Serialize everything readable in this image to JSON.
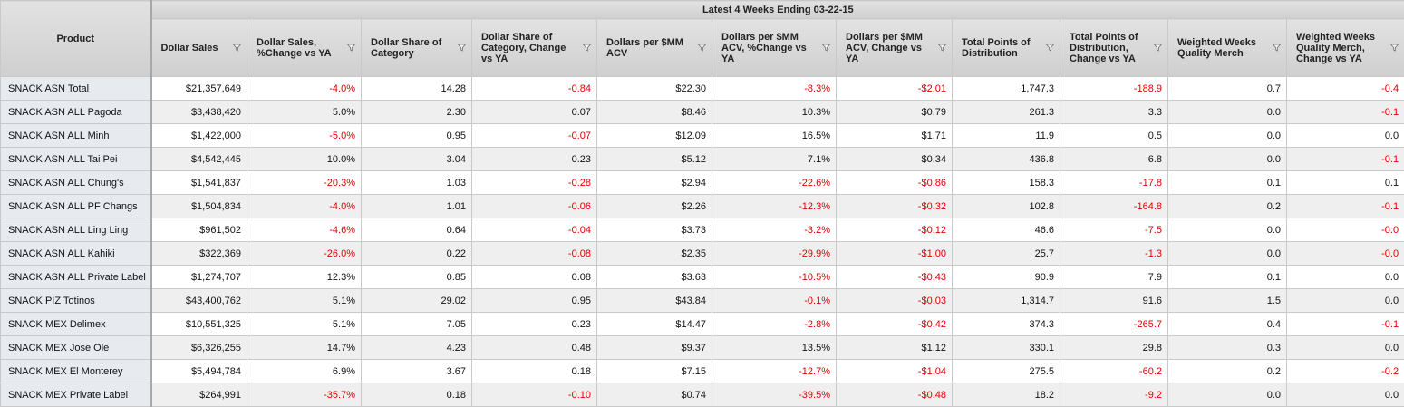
{
  "header": {
    "group": "Latest 4 Weeks Ending 03-22-15",
    "product": "Product",
    "columns": [
      "Dollar Sales",
      "Dollar Sales, %Change vs YA",
      "Dollar Share of Category",
      "Dollar Share of Category, Change vs YA",
      "Dollars per $MM ACV",
      "Dollars per $MM ACV, %Change vs YA",
      "Dollars per $MM ACV, Change vs YA",
      "Total Points of Distribution",
      "Total Points of Distribution, Change vs YA",
      "Weighted Weeks Quality Merch",
      "Weighted Weeks Quality Merch, Change vs YA"
    ]
  },
  "table": {
    "rows": [
      [
        "SNACK ASN Total",
        "$21,357,649",
        "-4.0%",
        "14.28",
        "-0.84",
        "$22.30",
        "-8.3%",
        "-$2.01",
        "1,747.3",
        "-188.9",
        "0.7",
        "-0.4"
      ],
      [
        "SNACK ASN ALL Pagoda",
        "$3,438,420",
        "5.0%",
        "2.30",
        "0.07",
        "$8.46",
        "10.3%",
        "$0.79",
        "261.3",
        "3.3",
        "0.0",
        "-0.1"
      ],
      [
        "SNACK ASN ALL Minh",
        "$1,422,000",
        "-5.0%",
        "0.95",
        "-0.07",
        "$12.09",
        "16.5%",
        "$1.71",
        "11.9",
        "0.5",
        "0.0",
        "0.0"
      ],
      [
        "SNACK ASN ALL Tai Pei",
        "$4,542,445",
        "10.0%",
        "3.04",
        "0.23",
        "$5.12",
        "7.1%",
        "$0.34",
        "436.8",
        "6.8",
        "0.0",
        "-0.1"
      ],
      [
        "SNACK ASN ALL Chung's",
        "$1,541,837",
        "-20.3%",
        "1.03",
        "-0.28",
        "$2.94",
        "-22.6%",
        "-$0.86",
        "158.3",
        "-17.8",
        "0.1",
        "0.1"
      ],
      [
        "SNACK ASN ALL PF Changs",
        "$1,504,834",
        "-4.0%",
        "1.01",
        "-0.06",
        "$2.26",
        "-12.3%",
        "-$0.32",
        "102.8",
        "-164.8",
        "0.2",
        "-0.1"
      ],
      [
        "SNACK ASN ALL Ling Ling",
        "$961,502",
        "-4.6%",
        "0.64",
        "-0.04",
        "$3.73",
        "-3.2%",
        "-$0.12",
        "46.6",
        "-7.5",
        "0.0",
        "-0.0"
      ],
      [
        "SNACK ASN ALL Kahiki",
        "$322,369",
        "-26.0%",
        "0.22",
        "-0.08",
        "$2.35",
        "-29.9%",
        "-$1.00",
        "25.7",
        "-1.3",
        "0.0",
        "-0.0"
      ],
      [
        "SNACK ASN ALL Private Label",
        "$1,274,707",
        "12.3%",
        "0.85",
        "0.08",
        "$3.63",
        "-10.5%",
        "-$0.43",
        "90.9",
        "7.9",
        "0.1",
        "0.0"
      ],
      [
        "SNACK PIZ Totinos",
        "$43,400,762",
        "5.1%",
        "29.02",
        "0.95",
        "$43.84",
        "-0.1%",
        "-$0.03",
        "1,314.7",
        "91.6",
        "1.5",
        "0.0"
      ],
      [
        "SNACK MEX Delimex",
        "$10,551,325",
        "5.1%",
        "7.05",
        "0.23",
        "$14.47",
        "-2.8%",
        "-$0.42",
        "374.3",
        "-265.7",
        "0.4",
        "-0.1"
      ],
      [
        "SNACK MEX Jose Ole",
        "$6,326,255",
        "14.7%",
        "4.23",
        "0.48",
        "$9.37",
        "13.5%",
        "$1.12",
        "330.1",
        "29.8",
        "0.3",
        "0.0"
      ],
      [
        "SNACK MEX El Monterey",
        "$5,494,784",
        "6.9%",
        "3.67",
        "0.18",
        "$7.15",
        "-12.7%",
        "-$1.04",
        "275.5",
        "-60.2",
        "0.2",
        "-0.2"
      ],
      [
        "SNACK MEX Private Label",
        "$264,991",
        "-35.7%",
        "0.18",
        "-0.10",
        "$0.74",
        "-39.5%",
        "-$0.48",
        "18.2",
        "-9.2",
        "0.0",
        "0.0"
      ]
    ]
  }
}
